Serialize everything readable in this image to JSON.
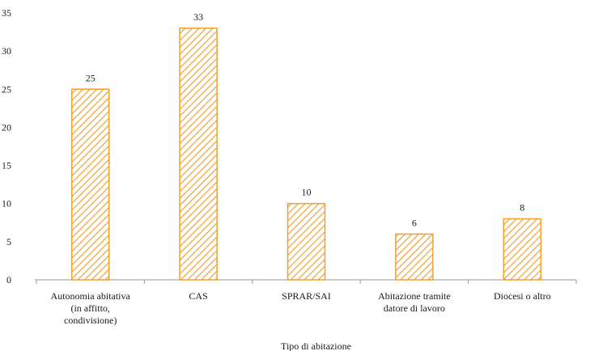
{
  "chart_data": {
    "type": "bar",
    "categories": [
      [
        "Autonomia abitativa",
        "(in affitto,",
        "condivisione)"
      ],
      [
        "CAS"
      ],
      [
        "SPRAR/SAI"
      ],
      [
        "Abitazione tramite",
        "datore di lavoro"
      ],
      [
        "Diocesi o altro"
      ]
    ],
    "values": [
      25,
      33,
      10,
      6,
      8
    ],
    "data_labels": [
      "25",
      "33",
      "10",
      "6",
      "8"
    ],
    "xlabel": "Tipo di abitazione",
    "ylabel": "",
    "ylim": [
      0,
      35
    ],
    "yticks": [
      "0",
      "5",
      "10",
      "15",
      "20",
      "25",
      "30",
      "35"
    ],
    "grid": false,
    "bar_color": "#f0a030",
    "bar_pattern": "diagonal-hatch"
  }
}
